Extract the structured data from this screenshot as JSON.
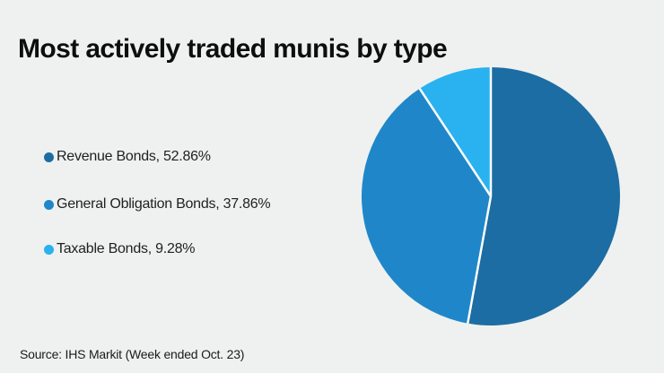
{
  "header": {
    "title": "Most actively traded munis by type"
  },
  "footer": {
    "source": "Source: IHS Markit (Week ended Oct. 23)"
  },
  "colors": {
    "background": "#eff1f0",
    "title_text": "#0e0e0e",
    "legend_text": "#1f1f1f",
    "separator": "#ffffff"
  },
  "chart_data": {
    "type": "pie",
    "title": "Most actively traded munis by type",
    "legend_position": "left",
    "start_angle_deg": 0,
    "direction": "clockwise",
    "slices": [
      {
        "id": "revenue-bonds",
        "label": "Revenue Bonds",
        "value": 52.86,
        "color": "#1c6da3",
        "legend_text": "Revenue Bonds, 52.86%"
      },
      {
        "id": "general-obligation-bonds",
        "label": "General Obligation Bonds",
        "value": 37.86,
        "color": "#1f87c9",
        "legend_text": "General Obligation Bonds, 37.86%"
      },
      {
        "id": "taxable-bonds",
        "label": "Taxable Bonds",
        "value": 9.28,
        "color": "#29b2ef",
        "legend_text": "Taxable Bonds, 9.28%"
      }
    ],
    "source": "Source: IHS Markit (Week ended Oct. 23)"
  }
}
